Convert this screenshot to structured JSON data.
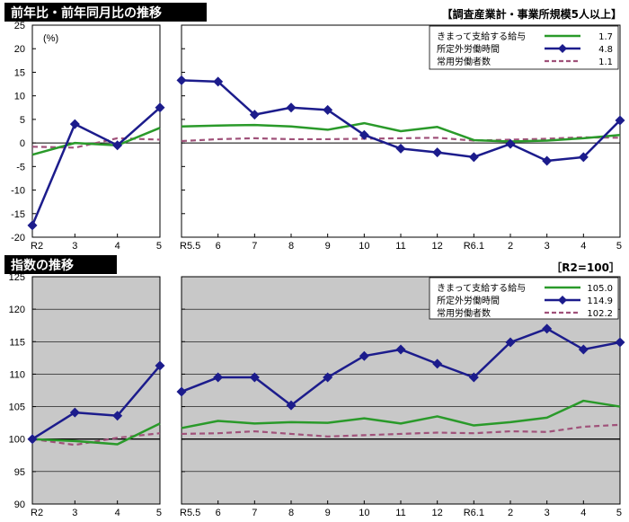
{
  "colors": {
    "wage": "#2a9a2a",
    "hours": "#1c1c8c",
    "employment": "#a0527a",
    "banner": "#000000",
    "plot_bg_index": "#c8c8c8"
  },
  "chart_data": [
    {
      "type": "line",
      "title": "前年比・前年同月比の推移",
      "note": "【調査産業計・事業所規模5人以上】",
      "unit_label": "(%)",
      "ylim": [
        -20,
        25
      ],
      "yticks": [
        "25",
        "20",
        "15",
        "10",
        "5",
        "0",
        "-5",
        "-10",
        "-15",
        "-20"
      ],
      "grid": false,
      "legend_position": "top-right",
      "legend": [
        {
          "name": "きまって支給する給与",
          "value": "1.7"
        },
        {
          "name": "所定外労働時間",
          "value": "4.8"
        },
        {
          "name": "常用労働者数",
          "value": "1.1"
        }
      ],
      "panels": [
        {
          "categories": [
            "R2",
            "3",
            "4",
            "5"
          ],
          "series": [
            {
              "name": "きまって支給する給与",
              "values": [
                -2.5,
                0,
                -0.5,
                3.2
              ]
            },
            {
              "name": "所定外労働時間",
              "values": [
                -17.5,
                4.0,
                -0.5,
                7.5
              ]
            },
            {
              "name": "常用労働者数",
              "values": [
                -0.8,
                -1.0,
                1.0,
                0.7
              ]
            }
          ]
        },
        {
          "categories": [
            "R5.5",
            "6",
            "7",
            "8",
            "9",
            "10",
            "11",
            "12",
            "R6.1",
            "2",
            "3",
            "4",
            "5"
          ],
          "series": [
            {
              "name": "きまって支給する給与",
              "values": [
                3.5,
                3.7,
                3.8,
                3.5,
                2.8,
                4.2,
                2.5,
                3.4,
                0.6,
                0.3,
                0.5,
                1.0,
                1.7
              ]
            },
            {
              "name": "所定外労働時間",
              "values": [
                13.3,
                13.0,
                6.0,
                7.5,
                7.0,
                1.7,
                -1.2,
                -2.0,
                -3.0,
                -0.2,
                -3.8,
                -3.0,
                4.8
              ]
            },
            {
              "name": "常用労働者数",
              "values": [
                0.4,
                0.8,
                1.0,
                0.8,
                0.8,
                0.9,
                1.0,
                1.1,
                0.5,
                0.7,
                0.9,
                1.2,
                1.1
              ]
            }
          ]
        }
      ]
    },
    {
      "type": "line",
      "title": "指数の推移",
      "note": "［R2=100］",
      "ylim": [
        90,
        125
      ],
      "yticks": [
        "125",
        "120",
        "115",
        "110",
        "105",
        "100",
        "95",
        "90"
      ],
      "grid": true,
      "legend_position": "top-right",
      "legend": [
        {
          "name": "きまって支給する給与",
          "value": "105.0"
        },
        {
          "name": "所定外労働時間",
          "value": "114.9"
        },
        {
          "name": "常用労働者数",
          "value": "102.2"
        }
      ],
      "panels": [
        {
          "categories": [
            "R2",
            "3",
            "4",
            "5"
          ],
          "series": [
            {
              "name": "きまって支給する給与",
              "values": [
                100.0,
                99.7,
                99.2,
                102.4
              ]
            },
            {
              "name": "所定外労働時間",
              "values": [
                100.0,
                104.1,
                103.6,
                111.3
              ]
            },
            {
              "name": "常用労働者数",
              "values": [
                100.0,
                99.1,
                100.2,
                100.9
              ]
            }
          ]
        },
        {
          "categories": [
            "R5.5",
            "6",
            "7",
            "8",
            "9",
            "10",
            "11",
            "12",
            "R6.1",
            "2",
            "3",
            "4",
            "5"
          ],
          "series": [
            {
              "name": "きまって支給する給与",
              "values": [
                101.7,
                102.8,
                102.4,
                102.6,
                102.5,
                103.2,
                102.4,
                103.5,
                102.1,
                102.6,
                103.3,
                105.9,
                105.0
              ]
            },
            {
              "name": "所定外労働時間",
              "values": [
                107.3,
                109.5,
                109.5,
                105.2,
                109.5,
                112.8,
                113.8,
                111.6,
                109.5,
                114.9,
                117.0,
                113.8,
                114.9
              ]
            },
            {
              "name": "常用労働者数",
              "values": [
                100.8,
                100.9,
                101.2,
                100.8,
                100.4,
                100.6,
                100.8,
                101.0,
                100.9,
                101.2,
                101.1,
                101.9,
                102.2
              ]
            }
          ]
        }
      ]
    }
  ]
}
